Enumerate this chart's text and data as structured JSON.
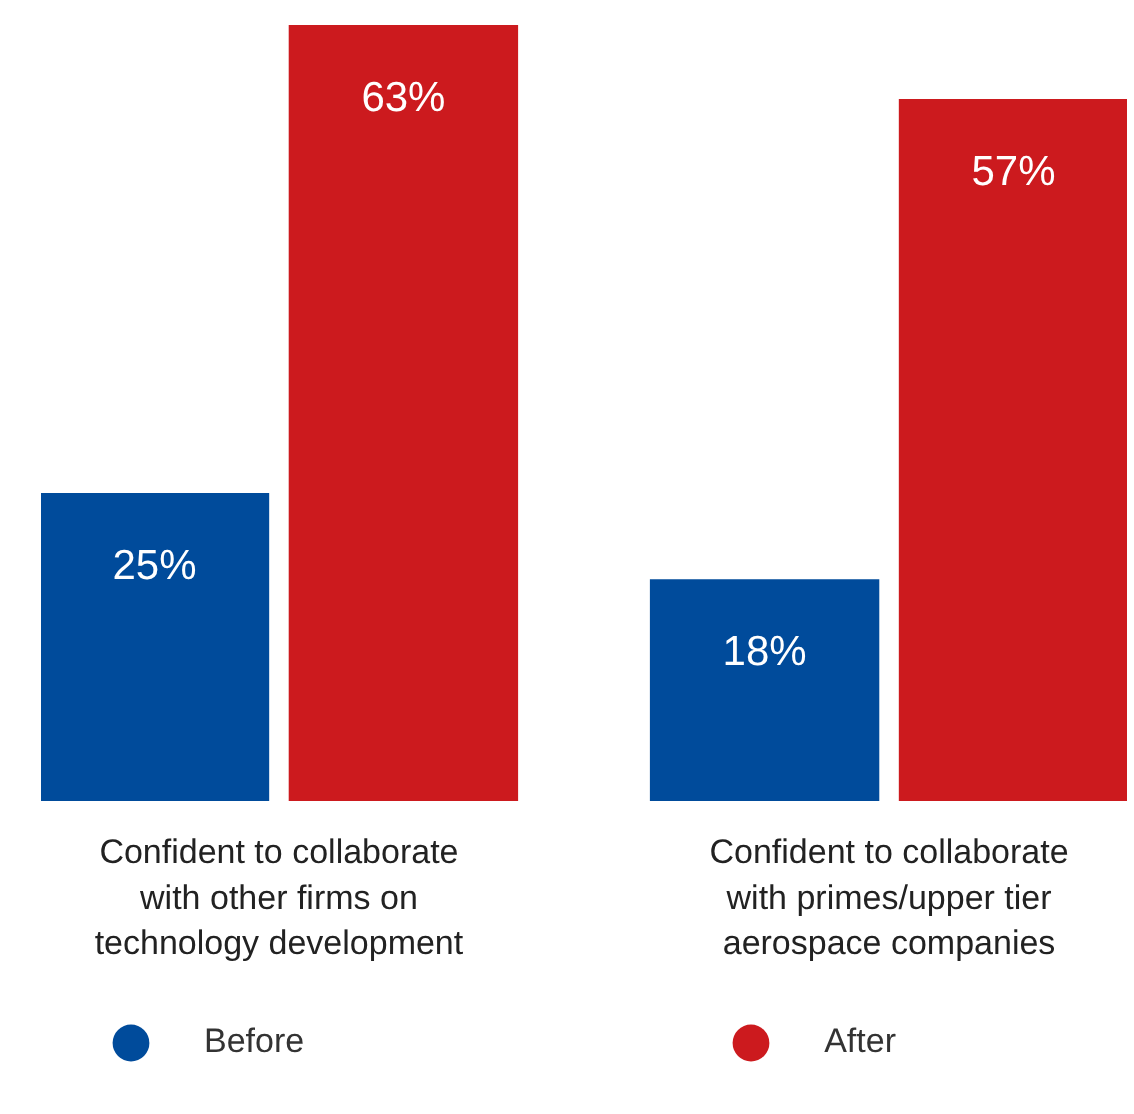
{
  "chart_data": {
    "type": "bar",
    "categories": [
      "Confident to collaborate\nwith other firms on\ntechnology development",
      "Confident to collaborate\nwith primes/upper tier\naerospace companies"
    ],
    "series": [
      {
        "name": "Before",
        "color": "#004b9b",
        "values": [
          25,
          18
        ],
        "value_labels": [
          "25%",
          "18%"
        ]
      },
      {
        "name": "After",
        "color": "#cc1a1e",
        "values": [
          63,
          57
        ],
        "value_labels": [
          "63%",
          "57%"
        ]
      }
    ],
    "legend": "bottom"
  }
}
